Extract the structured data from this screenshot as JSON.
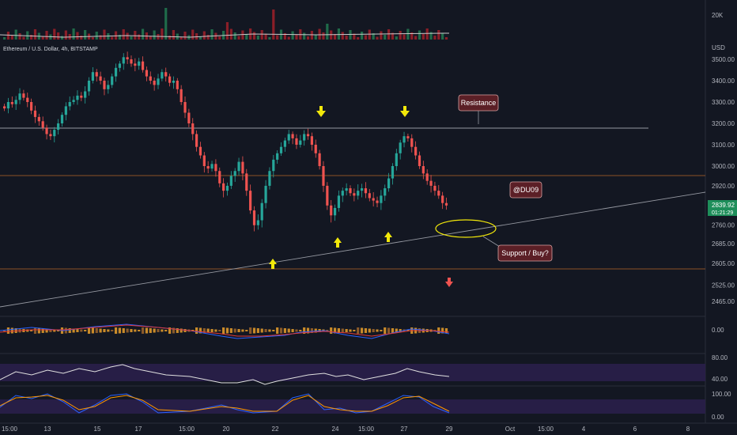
{
  "header": {
    "title": "Ethereum / U.S. Dollar, 4h, BITSTAMP"
  },
  "price_axis": {
    "currency": "USD",
    "ticks": [
      "3500.00",
      "3400.00",
      "3300.00",
      "3200.00",
      "3100.00",
      "3000.00",
      "2920.00",
      "2840.00",
      "2760.00",
      "2685.00",
      "2605.00",
      "2525.00",
      "2465.00"
    ],
    "ticks_val": [
      3500,
      3400,
      3300,
      3200,
      3100,
      3000,
      2920,
      2840,
      2760,
      2685,
      2605,
      2525,
      2465
    ],
    "last_price": "2839.92",
    "countdown": "01:21:29",
    "volume_tick": "20K"
  },
  "indicators": {
    "macd_tick": "0.00",
    "rsi_ticks": [
      "80.00",
      "40.00"
    ],
    "stoch_ticks": [
      "100.00",
      "0.00"
    ]
  },
  "time_axis": {
    "labels": [
      "15:00",
      "13",
      "15",
      "17",
      "15:00",
      "20",
      "22",
      "24",
      "15:00",
      "27",
      "29",
      "Oct",
      "15:00",
      "4",
      "6",
      "8"
    ]
  },
  "annotations": {
    "resistance": "Resistance",
    "watermark": "@DU09",
    "support": "Support / Buy?"
  },
  "colors": {
    "up": "#26a69a",
    "down": "#ef5350",
    "background": "#131722",
    "arrow": "#f2e80a",
    "label_bg": "#5b1f26"
  },
  "chart_data": {
    "type": "candlestick",
    "title": "Ethereum / U.S. Dollar, 4h, BITSTAMP",
    "ylabel": "USD",
    "ylim": [
      2440,
      3560
    ],
    "lines": {
      "resistance": 3170,
      "upper_band": 2970,
      "lower_band": 2590,
      "support_trend_start": 2450,
      "support_trend_end": 2890
    },
    "candles_close": [
      3270,
      3300,
      3290,
      3310,
      3340,
      3320,
      3300,
      3260,
      3230,
      3210,
      3180,
      3150,
      3140,
      3170,
      3200,
      3240,
      3280,
      3300,
      3310,
      3330,
      3320,
      3350,
      3400,
      3440,
      3420,
      3400,
      3360,
      3380,
      3420,
      3460,
      3480,
      3510,
      3500,
      3480,
      3470,
      3490,
      3450,
      3420,
      3400,
      3380,
      3410,
      3440,
      3420,
      3390,
      3400,
      3360,
      3300,
      3250,
      3200,
      3150,
      3090,
      3050,
      3000,
      2990,
      3010,
      2980,
      2930,
      2900,
      2920,
      2960,
      2980,
      3020,
      2970,
      2900,
      2820,
      2760,
      2780,
      2850,
      2920,
      2980,
      3030,
      3060,
      3090,
      3120,
      3150,
      3130,
      3100,
      3120,
      3150,
      3140,
      3100,
      3060,
      3000,
      2920,
      2840,
      2800,
      2830,
      2880,
      2900,
      2910,
      2890,
      2880,
      2900,
      2910,
      2890,
      2870,
      2860,
      2850,
      2880,
      2910,
      2950,
      3000,
      3060,
      3110,
      3140,
      3130,
      3090,
      3050,
      3000,
      2970,
      2940,
      2920,
      2900,
      2880,
      2850,
      2840
    ],
    "volume_threshold_label": "20K",
    "rsi_levels": [
      80,
      40
    ],
    "stoch_levels": [
      100,
      0
    ]
  }
}
